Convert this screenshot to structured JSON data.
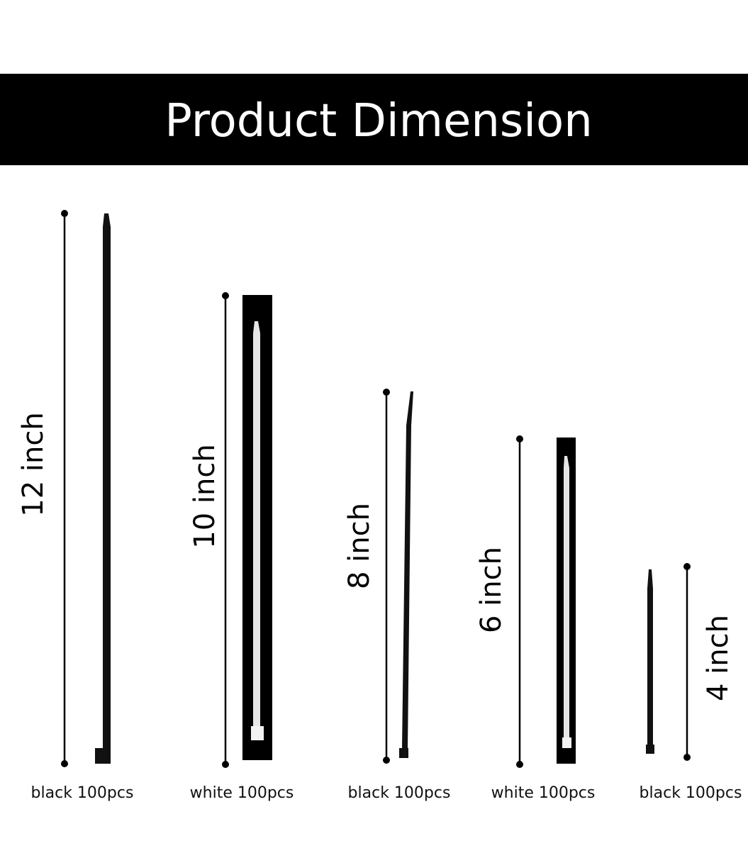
{
  "header": {
    "title": "Product Dimension"
  },
  "items": [
    {
      "size": "12 inch",
      "caption": "black 100pcs"
    },
    {
      "size": "10 inch",
      "caption": "white 100pcs"
    },
    {
      "size": "8 inch",
      "caption": "black 100pcs"
    },
    {
      "size": "6 inch",
      "caption": "white 100pcs"
    },
    {
      "size": "4 inch",
      "caption": "black 100pcs"
    }
  ]
}
